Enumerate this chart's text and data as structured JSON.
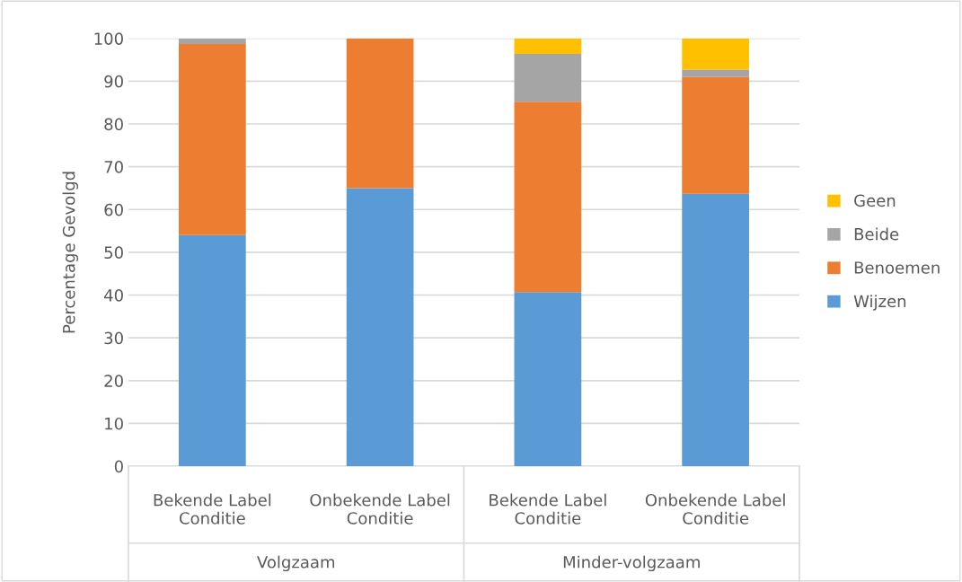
{
  "chart_data": {
    "type": "bar",
    "stacked": true,
    "ylabel": "Percentage Gevolgd",
    "categories": [
      "Bekende Label\nConditie",
      "Onbekende Label\nConditie",
      "Bekende Label\nConditie",
      "Onbekende Label\nConditie"
    ],
    "series": [
      {
        "name": "Wijzen",
        "color": "#5b9bd5",
        "values": [
          54.0,
          65.0,
          40.7,
          63.7
        ]
      },
      {
        "name": "Benoemen",
        "color": "#ed7d31",
        "values": [
          44.7,
          35.0,
          44.5,
          27.3
        ]
      },
      {
        "name": "Beide",
        "color": "#a5a5a5",
        "values": [
          1.3,
          0,
          11.2,
          1.7
        ]
      },
      {
        "name": "Geen",
        "color": "#ffc000",
        "values": [
          0,
          0,
          3.6,
          7.3
        ]
      }
    ],
    "annotations": [
      "Volgzaam",
      "Minder-volgzaam"
    ],
    "ylim": [
      0,
      100
    ],
    "yticks": [
      0,
      10,
      20,
      30,
      40,
      50,
      60,
      70,
      80,
      90,
      100
    ],
    "grid": "y",
    "legend": "right"
  }
}
